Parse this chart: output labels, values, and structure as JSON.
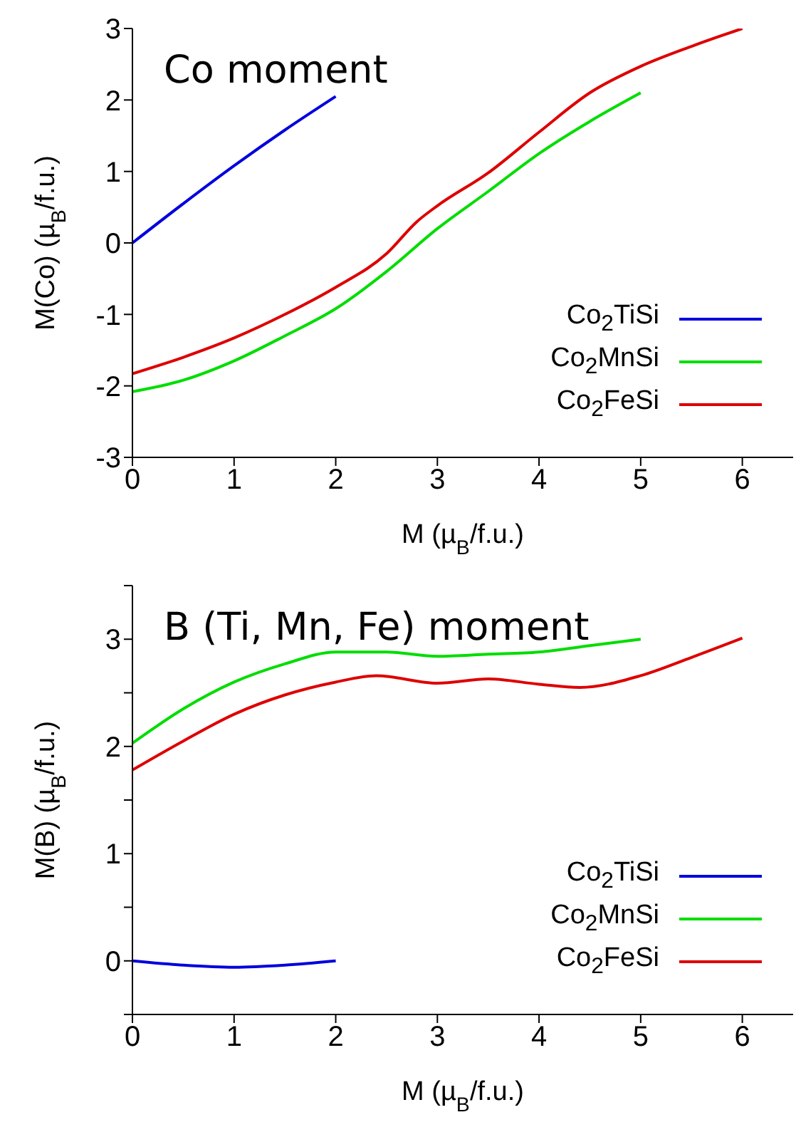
{
  "chart_data": [
    {
      "type": "line",
      "annotations": [
        "Co moment"
      ],
      "xlabel": "M (µ$_{B}$/f.u.)",
      "ylabel": "M(Co) (µ$_{B}$/f.u.)",
      "xlim": [
        0,
        6.5
      ],
      "xticks": [
        0,
        1,
        2,
        3,
        4,
        5,
        6
      ],
      "ylim": [
        -3,
        3
      ],
      "yticks": [
        -3,
        -2,
        -1,
        0,
        1,
        2,
        3
      ],
      "legend": "bottom right",
      "grid": false,
      "marker": "none",
      "line_style": "solid",
      "series": [
        {
          "name": "Co$_{2}$TiSi",
          "color": "#0000dd",
          "x": [
            0,
            0.5,
            1,
            1.5,
            2
          ],
          "values": [
            0,
            0.55,
            1.08,
            1.58,
            2.05
          ]
        },
        {
          "name": "Co$_{2}$MnSi",
          "color": "#00dd00",
          "x": [
            0,
            0.5,
            1,
            1.5,
            2,
            2.5,
            3,
            3.5,
            4,
            4.5,
            5
          ],
          "values": [
            -2.08,
            -1.92,
            -1.65,
            -1.3,
            -0.92,
            -0.4,
            0.2,
            0.72,
            1.25,
            1.7,
            2.1
          ]
        },
        {
          "name": "Co$_{2}$FeSi",
          "color": "#dd0000",
          "x": [
            0,
            0.5,
            1,
            1.5,
            2,
            2.5,
            2.8,
            3,
            3.5,
            4,
            4.5,
            5,
            5.5,
            6
          ],
          "values": [
            -1.83,
            -1.6,
            -1.33,
            -1.0,
            -0.62,
            -0.15,
            0.3,
            0.52,
            0.98,
            1.55,
            2.1,
            2.47,
            2.75,
            3.0
          ]
        }
      ]
    },
    {
      "type": "line",
      "annotations": [
        "B (Ti, Mn, Fe) moment"
      ],
      "xlabel": "M (µ$_{B}$/f.u.)",
      "ylabel": "M(B) (µ$_{B}$/f.u.)",
      "xlim": [
        0,
        6.5
      ],
      "xticks": [
        0,
        1,
        2,
        3,
        4,
        5,
        6
      ],
      "ylim": [
        -0.5,
        3.5
      ],
      "yticks": [
        {
          "value": -0.5,
          "label": null
        },
        0,
        {
          "value": 0.5,
          "label": null
        },
        1,
        {
          "value": 1.5,
          "label": null
        },
        2,
        {
          "value": 2.5,
          "label": null
        },
        3,
        {
          "value": 3.5,
          "label": null
        }
      ],
      "legend": "bottom right",
      "grid": false,
      "marker": "none",
      "line_style": "solid",
      "series": [
        {
          "name": "Co$_{2}$TiSi",
          "color": "#0000dd",
          "x": [
            0,
            0.5,
            1,
            1.5,
            2
          ],
          "values": [
            0,
            -0.04,
            -0.06,
            -0.04,
            0
          ]
        },
        {
          "name": "Co$_{2}$MnSi",
          "color": "#00dd00",
          "x": [
            0,
            0.5,
            1,
            1.5,
            2,
            2.5,
            3,
            3.5,
            4,
            4.5,
            5
          ],
          "values": [
            2.03,
            2.35,
            2.6,
            2.77,
            2.88,
            2.88,
            2.84,
            2.86,
            2.88,
            2.94,
            3.0
          ]
        },
        {
          "name": "Co$_{2}$FeSi",
          "color": "#dd0000",
          "x": [
            0,
            0.5,
            1,
            1.5,
            2,
            2.4,
            3,
            3.5,
            4,
            4.4,
            5,
            5.5,
            6
          ],
          "values": [
            1.78,
            2.05,
            2.3,
            2.48,
            2.6,
            2.66,
            2.59,
            2.63,
            2.58,
            2.55,
            2.66,
            2.83,
            3.01
          ]
        }
      ]
    }
  ]
}
